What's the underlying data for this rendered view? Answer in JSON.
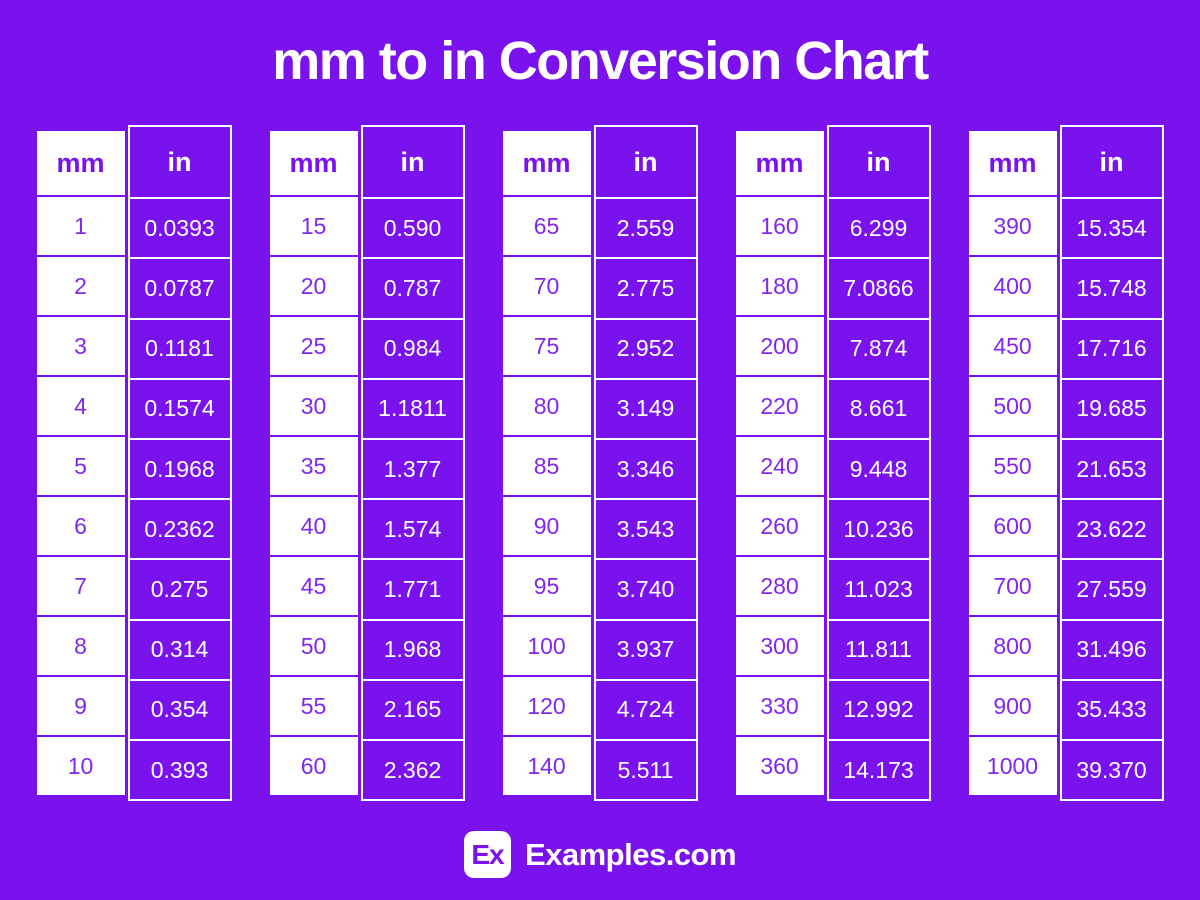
{
  "title": "mm to in Conversion Chart",
  "footer": {
    "logo_text": "Ex",
    "site_name": "Examples.com"
  },
  "colors": {
    "background": "#7A12EE",
    "cell_white": "#FFFFFF",
    "mm_value_text": "#8227EC",
    "in_value_text": "#FFFFFF"
  },
  "chart_data": {
    "type": "table",
    "title": "mm to in Conversion Chart",
    "columns": [
      "mm",
      "in"
    ],
    "layout": "5 side-by-side two-column tables, mm column white with purple text, in column purple with white text and white borders",
    "sections": [
      [
        [
          "1",
          "0.0393"
        ],
        [
          "2",
          "0.0787"
        ],
        [
          "3",
          "0.1181"
        ],
        [
          "4",
          "0.1574"
        ],
        [
          "5",
          "0.1968"
        ],
        [
          "6",
          "0.2362"
        ],
        [
          "7",
          "0.275"
        ],
        [
          "8",
          "0.314"
        ],
        [
          "9",
          "0.354"
        ],
        [
          "10",
          "0.393"
        ]
      ],
      [
        [
          "15",
          "0.590"
        ],
        [
          "20",
          "0.787"
        ],
        [
          "25",
          "0.984"
        ],
        [
          "30",
          "1.1811"
        ],
        [
          "35",
          "1.377"
        ],
        [
          "40",
          "1.574"
        ],
        [
          "45",
          "1.771"
        ],
        [
          "50",
          "1.968"
        ],
        [
          "55",
          "2.165"
        ],
        [
          "60",
          "2.362"
        ]
      ],
      [
        [
          "65",
          "2.559"
        ],
        [
          "70",
          "2.775"
        ],
        [
          "75",
          "2.952"
        ],
        [
          "80",
          "3.149"
        ],
        [
          "85",
          "3.346"
        ],
        [
          "90",
          "3.543"
        ],
        [
          "95",
          "3.740"
        ],
        [
          "100",
          "3.937"
        ],
        [
          "120",
          "4.724"
        ],
        [
          "140",
          "5.511"
        ]
      ],
      [
        [
          "160",
          "6.299"
        ],
        [
          "180",
          "7.0866"
        ],
        [
          "200",
          "7.874"
        ],
        [
          "220",
          "8.661"
        ],
        [
          "240",
          "9.448"
        ],
        [
          "260",
          "10.236"
        ],
        [
          "280",
          "11.023"
        ],
        [
          "300",
          "11.811"
        ],
        [
          "330",
          "12.992"
        ],
        [
          "360",
          "14.173"
        ]
      ],
      [
        [
          "390",
          "15.354"
        ],
        [
          "400",
          "15.748"
        ],
        [
          "450",
          "17.716"
        ],
        [
          "500",
          "19.685"
        ],
        [
          "550",
          "21.653"
        ],
        [
          "600",
          "23.622"
        ],
        [
          "700",
          "27.559"
        ],
        [
          "800",
          "31.496"
        ],
        [
          "900",
          "35.433"
        ],
        [
          "1000",
          "39.370"
        ]
      ]
    ]
  }
}
